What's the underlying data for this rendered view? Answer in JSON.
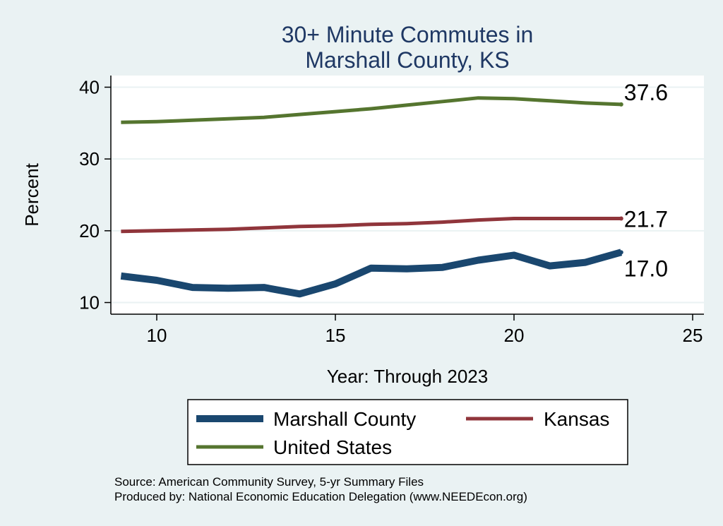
{
  "chart_data": {
    "type": "line",
    "title": [
      "30+ Minute Commutes in",
      "Marshall County, KS"
    ],
    "xlabel": "Year: Through 2023",
    "ylabel": "Percent",
    "xlim": [
      9,
      25
    ],
    "ylim": [
      9,
      41
    ],
    "xticks": [
      10,
      15,
      20,
      25
    ],
    "yticks": [
      10,
      20,
      30,
      40
    ],
    "grid": true,
    "legend": "bottom",
    "series": [
      {
        "name": "Marshall County",
        "color": "#1a476f",
        "x": [
          9,
          10,
          11,
          12,
          13,
          14,
          15,
          16,
          17,
          18,
          19,
          20,
          21,
          22,
          23
        ],
        "values": [
          13.7,
          13.1,
          12.1,
          12.0,
          12.1,
          11.2,
          12.6,
          14.8,
          14.7,
          14.9,
          15.9,
          16.6,
          15.1,
          15.6,
          17.0
        ],
        "end_label": "17.0"
      },
      {
        "name": "Kansas",
        "color": "#90353b",
        "x": [
          9,
          10,
          11,
          12,
          13,
          14,
          15,
          16,
          17,
          18,
          19,
          20,
          21,
          22,
          23
        ],
        "values": [
          19.9,
          20.0,
          20.1,
          20.2,
          20.4,
          20.6,
          20.7,
          20.9,
          21.0,
          21.2,
          21.5,
          21.7,
          21.7,
          21.7,
          21.7
        ],
        "end_label": "21.7"
      },
      {
        "name": "United States",
        "color": "#55752f",
        "x": [
          9,
          10,
          11,
          12,
          13,
          14,
          15,
          16,
          17,
          18,
          19,
          20,
          21,
          22,
          23
        ],
        "values": [
          35.1,
          35.2,
          35.4,
          35.6,
          35.8,
          36.2,
          36.6,
          37.0,
          37.5,
          38.0,
          38.5,
          38.4,
          38.1,
          37.8,
          37.6
        ],
        "end_label": "37.6"
      }
    ],
    "source_note": "Source: American Community Survey, 5-yr Summary Files",
    "produced_note": "Produced by: National Economic Education Delegation (www.NEEDEcon.org)"
  }
}
